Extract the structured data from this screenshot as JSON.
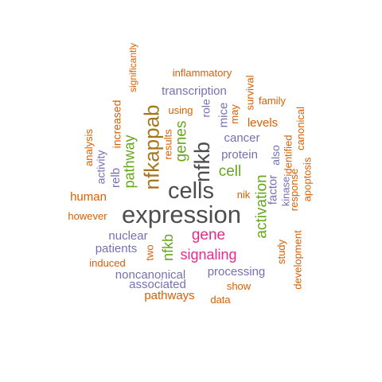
{
  "chart_data": {
    "type": "wordcloud",
    "title": "",
    "colors": {
      "dark_gray": "#4d4d4d",
      "green": "#66a61e",
      "purple": "#7570b3",
      "orange": "#d95f02",
      "magenta": "#e7298a",
      "brown": "#a6761d"
    },
    "words": [
      {
        "text": "expression",
        "weight": 100,
        "color": "#4d4d4d",
        "orientation": "horizontal"
      },
      {
        "text": "cells",
        "weight": 88,
        "color": "#4d4d4d",
        "orientation": "horizontal"
      },
      {
        "text": "nfkb",
        "weight": 85,
        "color": "#4d4d4d",
        "orientation": "vertical"
      },
      {
        "text": "nfkappab",
        "weight": 82,
        "color": "#a6761d",
        "orientation": "vertical"
      },
      {
        "text": "pathway",
        "weight": 62,
        "color": "#66a61e",
        "orientation": "vertical"
      },
      {
        "text": "genes",
        "weight": 60,
        "color": "#66a61e",
        "orientation": "vertical"
      },
      {
        "text": "cell",
        "weight": 60,
        "color": "#66a61e",
        "orientation": "horizontal"
      },
      {
        "text": "activation",
        "weight": 58,
        "color": "#66a61e",
        "orientation": "vertical"
      },
      {
        "text": "gene",
        "weight": 58,
        "color": "#e7298a",
        "orientation": "horizontal"
      },
      {
        "text": "signaling",
        "weight": 56,
        "color": "#e7298a",
        "orientation": "horizontal"
      },
      {
        "text": "nfkb",
        "weight": 55,
        "color": "#66a61e",
        "orientation": "vertical"
      },
      {
        "text": "transcription",
        "weight": 45,
        "color": "#7570b3",
        "orientation": "horizontal"
      },
      {
        "text": "protein",
        "weight": 45,
        "color": "#7570b3",
        "orientation": "horizontal"
      },
      {
        "text": "cancer",
        "weight": 42,
        "color": "#7570b3",
        "orientation": "horizontal"
      },
      {
        "text": "mice",
        "weight": 42,
        "color": "#7570b3",
        "orientation": "vertical"
      },
      {
        "text": "relb",
        "weight": 42,
        "color": "#7570b3",
        "orientation": "vertical"
      },
      {
        "text": "factor",
        "weight": 42,
        "color": "#7570b3",
        "orientation": "vertical"
      },
      {
        "text": "nuclear",
        "weight": 42,
        "color": "#7570b3",
        "orientation": "horizontal"
      },
      {
        "text": "noncanonical",
        "weight": 42,
        "color": "#7570b3",
        "orientation": "horizontal"
      },
      {
        "text": "processing",
        "weight": 40,
        "color": "#7570b3",
        "orientation": "horizontal"
      },
      {
        "text": "associated",
        "weight": 40,
        "color": "#7570b3",
        "orientation": "horizontal"
      },
      {
        "text": "patients",
        "weight": 38,
        "color": "#7570b3",
        "orientation": "horizontal"
      },
      {
        "text": "activity",
        "weight": 36,
        "color": "#7570b3",
        "orientation": "vertical"
      },
      {
        "text": "role",
        "weight": 36,
        "color": "#7570b3",
        "orientation": "vertical"
      },
      {
        "text": "also",
        "weight": 36,
        "color": "#7570b3",
        "orientation": "vertical"
      },
      {
        "text": "kinase",
        "weight": 35,
        "color": "#7570b3",
        "orientation": "vertical"
      },
      {
        "text": "increased",
        "weight": 35,
        "color": "#d95f02",
        "orientation": "vertical"
      },
      {
        "text": "human",
        "weight": 38,
        "color": "#d95f02",
        "orientation": "horizontal"
      },
      {
        "text": "levels",
        "weight": 36,
        "color": "#d95f02",
        "orientation": "horizontal"
      },
      {
        "text": "pathways",
        "weight": 36,
        "color": "#d95f02",
        "orientation": "horizontal"
      },
      {
        "text": "inflammatory",
        "weight": 32,
        "color": "#d95f02",
        "orientation": "horizontal"
      },
      {
        "text": "significantly",
        "weight": 30,
        "color": "#d95f02",
        "orientation": "vertical"
      },
      {
        "text": "analysis",
        "weight": 30,
        "color": "#d95f02",
        "orientation": "vertical"
      },
      {
        "text": "using",
        "weight": 30,
        "color": "#d95f02",
        "orientation": "horizontal"
      },
      {
        "text": "results",
        "weight": 30,
        "color": "#d95f02",
        "orientation": "vertical"
      },
      {
        "text": "may",
        "weight": 30,
        "color": "#d95f02",
        "orientation": "vertical"
      },
      {
        "text": "survival",
        "weight": 30,
        "color": "#d95f02",
        "orientation": "vertical"
      },
      {
        "text": "family",
        "weight": 30,
        "color": "#d95f02",
        "orientation": "horizontal"
      },
      {
        "text": "canonical",
        "weight": 30,
        "color": "#d95f02",
        "orientation": "vertical"
      },
      {
        "text": "identified",
        "weight": 30,
        "color": "#d95f02",
        "orientation": "vertical"
      },
      {
        "text": "apoptosis",
        "weight": 30,
        "color": "#d95f02",
        "orientation": "vertical"
      },
      {
        "text": "response",
        "weight": 30,
        "color": "#d95f02",
        "orientation": "vertical"
      },
      {
        "text": "nik",
        "weight": 30,
        "color": "#d95f02",
        "orientation": "horizontal"
      },
      {
        "text": "however",
        "weight": 30,
        "color": "#d95f02",
        "orientation": "horizontal"
      },
      {
        "text": "study",
        "weight": 30,
        "color": "#d95f02",
        "orientation": "vertical"
      },
      {
        "text": "development",
        "weight": 30,
        "color": "#d95f02",
        "orientation": "vertical"
      },
      {
        "text": "two",
        "weight": 30,
        "color": "#d95f02",
        "orientation": "vertical"
      },
      {
        "text": "induced",
        "weight": 30,
        "color": "#d95f02",
        "orientation": "horizontal"
      },
      {
        "text": "show",
        "weight": 30,
        "color": "#d95f02",
        "orientation": "horizontal"
      },
      {
        "text": "data",
        "weight": 30,
        "color": "#d95f02",
        "orientation": "horizontal"
      }
    ]
  }
}
